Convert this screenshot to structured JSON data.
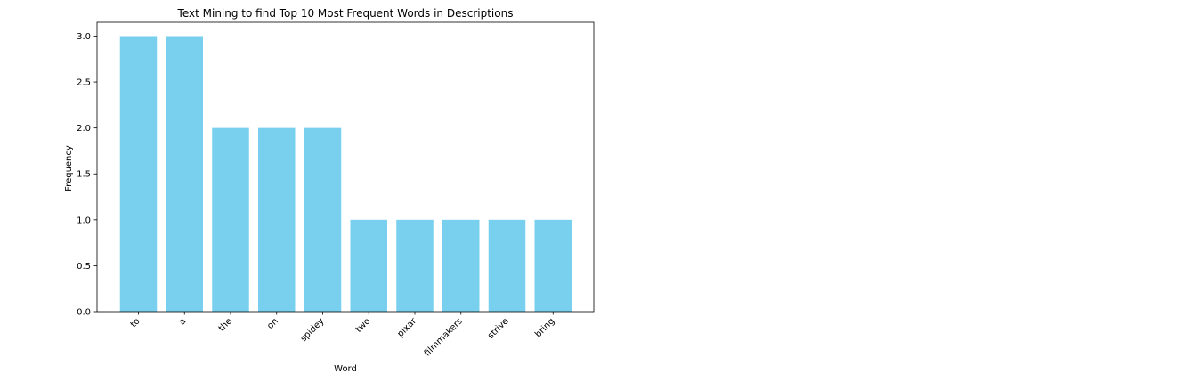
{
  "chart_data": {
    "type": "bar",
    "title": "Text Mining to find Top 10 Most Frequent Words in Descriptions",
    "xlabel": "Word",
    "ylabel": "Frequency",
    "categories": [
      "to",
      "a",
      "the",
      "on",
      "spidey",
      "two",
      "pixar",
      "filmmakers",
      "strive",
      "bring"
    ],
    "values": [
      3,
      3,
      2,
      2,
      2,
      1,
      1,
      1,
      1,
      1
    ],
    "ylim": [
      0,
      3.15
    ],
    "yticks": [
      "0.0",
      "0.5",
      "1.0",
      "1.5",
      "2.0",
      "2.5",
      "3.0"
    ],
    "bar_color": "#79d0ee",
    "grid": false,
    "legend": "none"
  }
}
